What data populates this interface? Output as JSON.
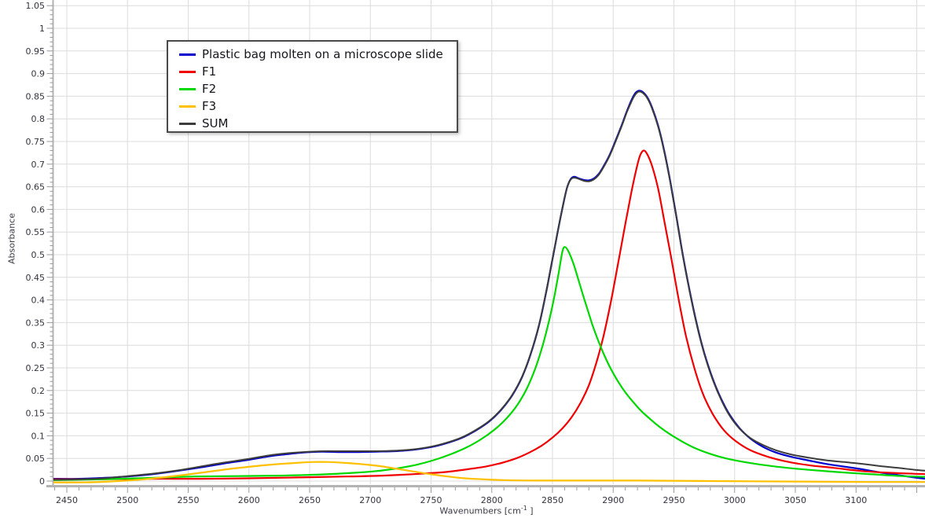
{
  "chart_data": {
    "type": "line",
    "title": "",
    "xlabel": "Wavenumbers [cm⁻¹ ]",
    "ylabel": "Absorbance",
    "xlim": [
      2438,
      3161
    ],
    "ylim": [
      -0.01,
      1.0625
    ],
    "grid": "major gridlines every 50 cm-1 (x) and 0.05 (y)",
    "legend_position": "top-left",
    "x_major_ticks": [
      2450,
      2500,
      2550,
      2600,
      2650,
      2700,
      2750,
      2800,
      2850,
      2900,
      2950,
      3000,
      3050,
      3100,
      3150
    ],
    "x_labeled_ticks": [
      2450,
      2500,
      2550,
      2600,
      2650,
      2700,
      2750,
      2800,
      2850,
      2900,
      2950,
      3000,
      3050,
      3100
    ],
    "x_minor_step": 10,
    "y_major_ticks": [
      0,
      0.05,
      0.1,
      0.15,
      0.2,
      0.25,
      0.3,
      0.35,
      0.4,
      0.45,
      0.5,
      0.55,
      0.6,
      0.65,
      0.7,
      0.75,
      0.8,
      0.85,
      0.9,
      0.95,
      1,
      1.05
    ],
    "y_minor_step": 0.01,
    "series": [
      {
        "name": "Plastic bag molten on a microscope slide",
        "color": "#0000cc",
        "width": 2.2,
        "points": [
          [
            2438,
            0.005
          ],
          [
            2460,
            0.005
          ],
          [
            2480,
            0.007
          ],
          [
            2500,
            0.01
          ],
          [
            2520,
            0.015
          ],
          [
            2540,
            0.022
          ],
          [
            2560,
            0.03
          ],
          [
            2580,
            0.039
          ],
          [
            2600,
            0.047
          ],
          [
            2615,
            0.054
          ],
          [
            2630,
            0.059
          ],
          [
            2645,
            0.063
          ],
          [
            2660,
            0.065
          ],
          [
            2675,
            0.064
          ],
          [
            2690,
            0.064
          ],
          [
            2705,
            0.065
          ],
          [
            2720,
            0.066
          ],
          [
            2735,
            0.069
          ],
          [
            2750,
            0.075
          ],
          [
            2762,
            0.083
          ],
          [
            2775,
            0.095
          ],
          [
            2787,
            0.112
          ],
          [
            2798,
            0.132
          ],
          [
            2808,
            0.158
          ],
          [
            2817,
            0.19
          ],
          [
            2825,
            0.23
          ],
          [
            2832,
            0.28
          ],
          [
            2839,
            0.345
          ],
          [
            2845,
            0.42
          ],
          [
            2850,
            0.49
          ],
          [
            2855,
            0.56
          ],
          [
            2859,
            0.613
          ],
          [
            2862,
            0.648
          ],
          [
            2865,
            0.667
          ],
          [
            2868,
            0.672
          ],
          [
            2872,
            0.668
          ],
          [
            2876,
            0.665
          ],
          [
            2880,
            0.664
          ],
          [
            2884,
            0.668
          ],
          [
            2888,
            0.678
          ],
          [
            2892,
            0.695
          ],
          [
            2897,
            0.72
          ],
          [
            2902,
            0.752
          ],
          [
            2907,
            0.786
          ],
          [
            2911,
            0.815
          ],
          [
            2915,
            0.841
          ],
          [
            2918,
            0.856
          ],
          [
            2921,
            0.862
          ],
          [
            2924,
            0.86
          ],
          [
            2928,
            0.848
          ],
          [
            2932,
            0.825
          ],
          [
            2937,
            0.785
          ],
          [
            2942,
            0.73
          ],
          [
            2947,
            0.662
          ],
          [
            2952,
            0.585
          ],
          [
            2957,
            0.505
          ],
          [
            2963,
            0.42
          ],
          [
            2969,
            0.345
          ],
          [
            2975,
            0.283
          ],
          [
            2982,
            0.226
          ],
          [
            2989,
            0.181
          ],
          [
            2996,
            0.146
          ],
          [
            3004,
            0.117
          ],
          [
            3013,
            0.094
          ],
          [
            3023,
            0.076
          ],
          [
            3034,
            0.063
          ],
          [
            3046,
            0.054
          ],
          [
            3060,
            0.046
          ],
          [
            3075,
            0.038
          ],
          [
            3090,
            0.032
          ],
          [
            3105,
            0.026
          ],
          [
            3120,
            0.019
          ],
          [
            3135,
            0.013
          ],
          [
            3148,
            0.008
          ],
          [
            3161,
            0.004
          ]
        ]
      },
      {
        "name": "F1",
        "color": "#f00000",
        "width": 2.2,
        "points": [
          [
            2438,
            0.004
          ],
          [
            2480,
            0.004
          ],
          [
            2520,
            0.005
          ],
          [
            2560,
            0.005
          ],
          [
            2600,
            0.006
          ],
          [
            2640,
            0.008
          ],
          [
            2680,
            0.01
          ],
          [
            2710,
            0.012
          ],
          [
            2740,
            0.016
          ],
          [
            2762,
            0.02
          ],
          [
            2780,
            0.026
          ],
          [
            2795,
            0.032
          ],
          [
            2808,
            0.04
          ],
          [
            2820,
            0.05
          ],
          [
            2831,
            0.063
          ],
          [
            2841,
            0.078
          ],
          [
            2850,
            0.096
          ],
          [
            2858,
            0.116
          ],
          [
            2866,
            0.142
          ],
          [
            2873,
            0.172
          ],
          [
            2880,
            0.212
          ],
          [
            2886,
            0.26
          ],
          [
            2892,
            0.32
          ],
          [
            2898,
            0.395
          ],
          [
            2904,
            0.48
          ],
          [
            2910,
            0.568
          ],
          [
            2915,
            0.638
          ],
          [
            2919,
            0.688
          ],
          [
            2922,
            0.718
          ],
          [
            2925,
            0.73
          ],
          [
            2928,
            0.722
          ],
          [
            2932,
            0.696
          ],
          [
            2937,
            0.646
          ],
          [
            2942,
            0.576
          ],
          [
            2948,
            0.49
          ],
          [
            2954,
            0.4
          ],
          [
            2960,
            0.32
          ],
          [
            2967,
            0.248
          ],
          [
            2974,
            0.192
          ],
          [
            2982,
            0.148
          ],
          [
            2991,
            0.113
          ],
          [
            3001,
            0.088
          ],
          [
            3013,
            0.068
          ],
          [
            3027,
            0.054
          ],
          [
            3043,
            0.043
          ],
          [
            3061,
            0.035
          ],
          [
            3082,
            0.029
          ],
          [
            3105,
            0.022
          ],
          [
            3130,
            0.018
          ],
          [
            3161,
            0.015
          ]
        ]
      },
      {
        "name": "F2",
        "color": "#00d800",
        "width": 2.2,
        "points": [
          [
            2438,
            0.002
          ],
          [
            2480,
            0.004
          ],
          [
            2520,
            0.007
          ],
          [
            2555,
            0.01
          ],
          [
            2590,
            0.011
          ],
          [
            2625,
            0.012
          ],
          [
            2655,
            0.014
          ],
          [
            2685,
            0.018
          ],
          [
            2705,
            0.022
          ],
          [
            2722,
            0.028
          ],
          [
            2738,
            0.036
          ],
          [
            2752,
            0.046
          ],
          [
            2766,
            0.059
          ],
          [
            2779,
            0.074
          ],
          [
            2791,
            0.092
          ],
          [
            2802,
            0.113
          ],
          [
            2812,
            0.138
          ],
          [
            2821,
            0.168
          ],
          [
            2829,
            0.205
          ],
          [
            2836,
            0.25
          ],
          [
            2842,
            0.3
          ],
          [
            2847,
            0.352
          ],
          [
            2851,
            0.4
          ],
          [
            2855,
            0.458
          ],
          [
            2858,
            0.505
          ],
          [
            2860,
            0.517
          ],
          [
            2863,
            0.508
          ],
          [
            2867,
            0.482
          ],
          [
            2871,
            0.448
          ],
          [
            2875,
            0.412
          ],
          [
            2879,
            0.378
          ],
          [
            2883,
            0.344
          ],
          [
            2888,
            0.308
          ],
          [
            2893,
            0.276
          ],
          [
            2898,
            0.248
          ],
          [
            2904,
            0.22
          ],
          [
            2910,
            0.196
          ],
          [
            2916,
            0.176
          ],
          [
            2923,
            0.155
          ],
          [
            2930,
            0.138
          ],
          [
            2938,
            0.12
          ],
          [
            2947,
            0.103
          ],
          [
            2957,
            0.087
          ],
          [
            2968,
            0.072
          ],
          [
            2980,
            0.06
          ],
          [
            2993,
            0.05
          ],
          [
            3008,
            0.042
          ],
          [
            3025,
            0.035
          ],
          [
            3044,
            0.029
          ],
          [
            3065,
            0.024
          ],
          [
            3090,
            0.019
          ],
          [
            3113,
            0.015
          ],
          [
            3138,
            0.011
          ],
          [
            3161,
            0.009
          ]
        ]
      },
      {
        "name": "F3",
        "color": "#ffc000",
        "width": 2.2,
        "points": [
          [
            2438,
            -0.003
          ],
          [
            2465,
            -0.003
          ],
          [
            2485,
            -0.001
          ],
          [
            2505,
            0.002
          ],
          [
            2525,
            0.007
          ],
          [
            2545,
            0.013
          ],
          [
            2565,
            0.02
          ],
          [
            2585,
            0.027
          ],
          [
            2605,
            0.033
          ],
          [
            2622,
            0.037
          ],
          [
            2638,
            0.04
          ],
          [
            2652,
            0.042
          ],
          [
            2666,
            0.042
          ],
          [
            2680,
            0.04
          ],
          [
            2694,
            0.037
          ],
          [
            2708,
            0.033
          ],
          [
            2722,
            0.027
          ],
          [
            2736,
            0.021
          ],
          [
            2750,
            0.015
          ],
          [
            2764,
            0.01
          ],
          [
            2778,
            0.006
          ],
          [
            2792,
            0.004
          ],
          [
            2810,
            0.002
          ],
          [
            2835,
            0.001
          ],
          [
            2870,
            0.001
          ],
          [
            2920,
            0.001
          ],
          [
            2980,
            0.0
          ],
          [
            3050,
            -0.001
          ],
          [
            3110,
            -0.002
          ],
          [
            3161,
            -0.002
          ]
        ]
      },
      {
        "name": "SUM",
        "color": "#3c3c3c",
        "width": 2,
        "points": [
          [
            2438,
            0.003
          ],
          [
            2460,
            0.004
          ],
          [
            2480,
            0.006
          ],
          [
            2500,
            0.011
          ],
          [
            2520,
            0.016
          ],
          [
            2540,
            0.023
          ],
          [
            2560,
            0.032
          ],
          [
            2580,
            0.041
          ],
          [
            2600,
            0.049
          ],
          [
            2615,
            0.056
          ],
          [
            2630,
            0.061
          ],
          [
            2645,
            0.064
          ],
          [
            2660,
            0.066
          ],
          [
            2675,
            0.066
          ],
          [
            2690,
            0.066
          ],
          [
            2705,
            0.066
          ],
          [
            2720,
            0.067
          ],
          [
            2735,
            0.07
          ],
          [
            2750,
            0.076
          ],
          [
            2762,
            0.084
          ],
          [
            2775,
            0.096
          ],
          [
            2787,
            0.113
          ],
          [
            2798,
            0.133
          ],
          [
            2808,
            0.159
          ],
          [
            2817,
            0.191
          ],
          [
            2825,
            0.231
          ],
          [
            2832,
            0.281
          ],
          [
            2839,
            0.346
          ],
          [
            2845,
            0.421
          ],
          [
            2850,
            0.491
          ],
          [
            2855,
            0.561
          ],
          [
            2859,
            0.614
          ],
          [
            2862,
            0.648
          ],
          [
            2865,
            0.666
          ],
          [
            2868,
            0.67
          ],
          [
            2872,
            0.667
          ],
          [
            2876,
            0.663
          ],
          [
            2880,
            0.662
          ],
          [
            2884,
            0.666
          ],
          [
            2888,
            0.676
          ],
          [
            2892,
            0.693
          ],
          [
            2897,
            0.718
          ],
          [
            2902,
            0.75
          ],
          [
            2907,
            0.784
          ],
          [
            2911,
            0.813
          ],
          [
            2915,
            0.838
          ],
          [
            2918,
            0.853
          ],
          [
            2921,
            0.86
          ],
          [
            2924,
            0.858
          ],
          [
            2928,
            0.846
          ],
          [
            2932,
            0.823
          ],
          [
            2937,
            0.783
          ],
          [
            2942,
            0.728
          ],
          [
            2947,
            0.66
          ],
          [
            2952,
            0.583
          ],
          [
            2957,
            0.503
          ],
          [
            2963,
            0.418
          ],
          [
            2969,
            0.343
          ],
          [
            2975,
            0.281
          ],
          [
            2982,
            0.224
          ],
          [
            2989,
            0.179
          ],
          [
            2996,
            0.144
          ],
          [
            3004,
            0.116
          ],
          [
            3013,
            0.095
          ],
          [
            3023,
            0.08
          ],
          [
            3034,
            0.068
          ],
          [
            3046,
            0.059
          ],
          [
            3060,
            0.052
          ],
          [
            3075,
            0.046
          ],
          [
            3090,
            0.042
          ],
          [
            3105,
            0.038
          ],
          [
            3120,
            0.033
          ],
          [
            3135,
            0.029
          ],
          [
            3148,
            0.025
          ],
          [
            3161,
            0.022
          ]
        ]
      }
    ]
  },
  "labels": {
    "xlabel_prefix": "Wavenumbers [cm",
    "xlabel_sup": "-1",
    "xlabel_suffix": " ]"
  },
  "colors": {
    "grid": "#dcdcdc",
    "axis_line": "#b3b3b3",
    "tick": "#9a9a9a",
    "tick_text": "#33333f",
    "legend_border": "#4a4a4a",
    "legend_text": "#16161d",
    "background": "#ffffff"
  }
}
